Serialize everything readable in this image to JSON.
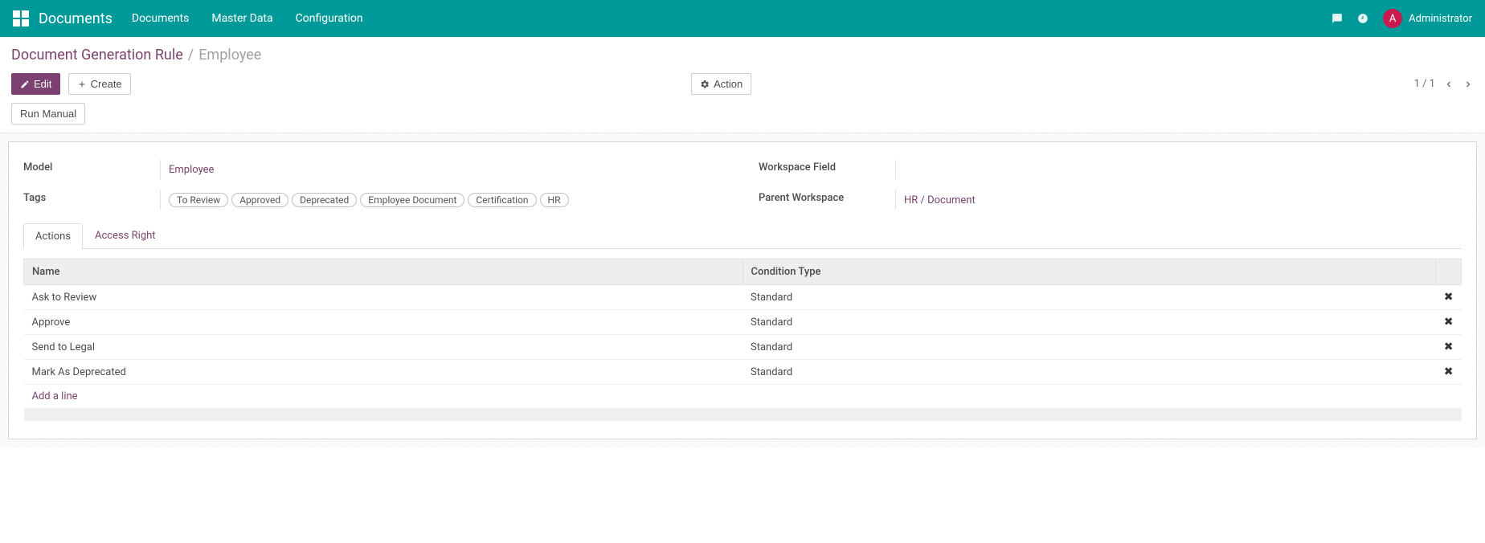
{
  "colors": {
    "navbar": "#009999",
    "primary": "#7c4072",
    "avatar_bg": "#c9194e"
  },
  "navbar": {
    "brand": "Documents",
    "items": [
      "Documents",
      "Master Data",
      "Configuration"
    ],
    "user": {
      "initial": "A",
      "name": "Administrator"
    }
  },
  "breadcrumb": {
    "parent": "Document Generation Rule",
    "separator": "/",
    "current": "Employee"
  },
  "buttons": {
    "edit": "Edit",
    "create": "Create",
    "action": "Action",
    "run_manual": "Run Manual"
  },
  "pager": {
    "text": "1 / 1"
  },
  "form": {
    "left": {
      "model_label": "Model",
      "model_value": "Employee",
      "tags_label": "Tags",
      "tags": [
        "To Review",
        "Approved",
        "Deprecated",
        "Employee Document",
        "Certification",
        "HR"
      ]
    },
    "right": {
      "workspace_field_label": "Workspace Field",
      "workspace_field_value": "",
      "parent_workspace_label": "Parent Workspace",
      "parent_workspace_value": "HR / Document"
    }
  },
  "tabs": {
    "actions": "Actions",
    "access_right": "Access Right"
  },
  "table": {
    "columns": {
      "name": "Name",
      "condition": "Condition Type"
    },
    "rows": [
      {
        "name": "Ask to Review",
        "condition": "Standard"
      },
      {
        "name": "Approve",
        "condition": "Standard"
      },
      {
        "name": "Send to Legal",
        "condition": "Standard"
      },
      {
        "name": "Mark As Deprecated",
        "condition": "Standard"
      }
    ],
    "add_line": "Add a line"
  }
}
